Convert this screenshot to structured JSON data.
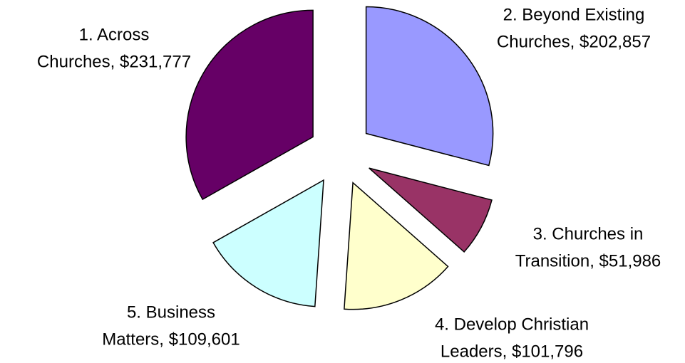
{
  "chart_data": {
    "type": "pie",
    "values": [
      231777,
      202857,
      51986,
      101796,
      109601
    ],
    "value_labels": [
      "1. Across Churches, $231,777",
      "2. Beyond Existing Churches, $202,857",
      "3. Churches in Transition, $51,986",
      "4. Develop Christian Leaders, $101,796",
      "5. Business Matters, $109,601"
    ],
    "colors": [
      "#660066",
      "#9999ff",
      "#993366",
      "#ffffcc",
      "#ccffff"
    ],
    "exploded": true
  }
}
